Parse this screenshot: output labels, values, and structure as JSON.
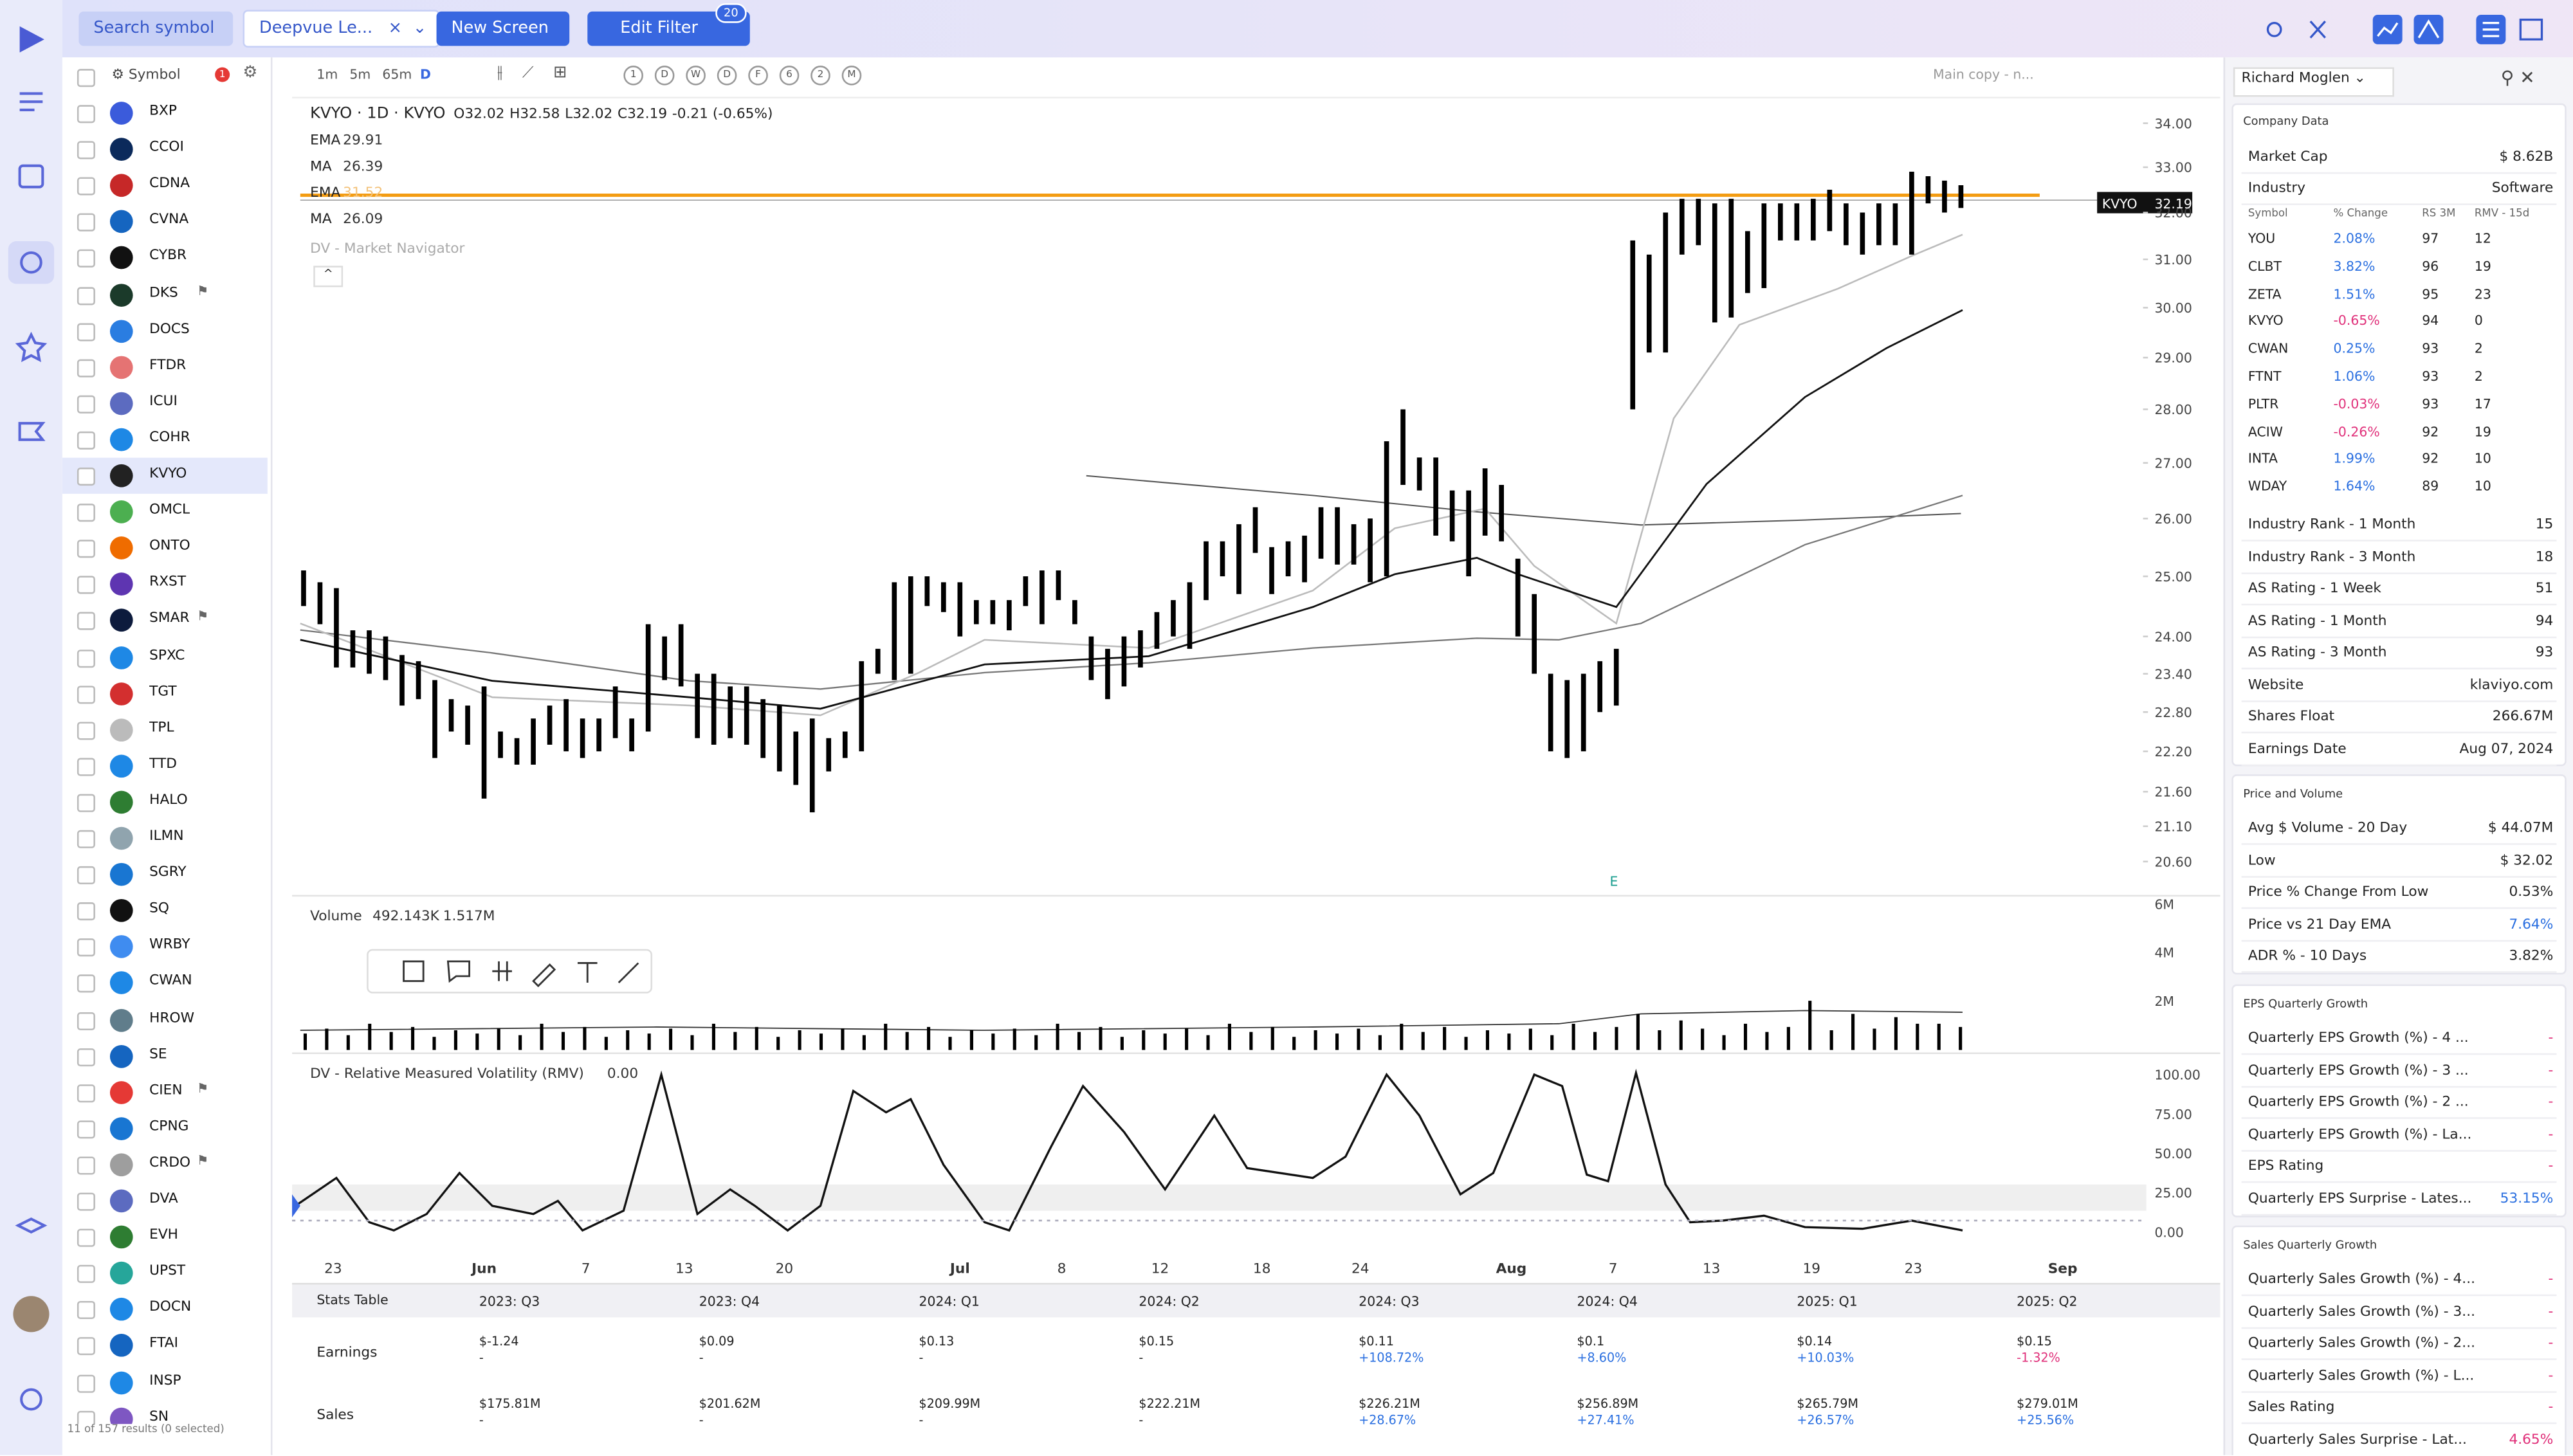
{
  "topbar": {
    "search": "Search symbol",
    "screen": "Deepvue Le...",
    "new_screen": "New Screen",
    "edit_filter": "Edit Filter",
    "filter_count": "20"
  },
  "watchlist": {
    "header": "Symbol",
    "badge": "1",
    "symbols": [
      "BXP",
      "CCOI",
      "CDNA",
      "CVNA",
      "CYBR",
      "DKS",
      "DOCS",
      "FTDR",
      "ICUI",
      "COHR",
      "KVYO",
      "OMCL",
      "ONTO",
      "RXST",
      "SMAR",
      "SPXC",
      "TGT",
      "TPL",
      "TTD",
      "HALO",
      "ILMN",
      "SGRY",
      "SQ",
      "WRBY",
      "CWAN",
      "HROW",
      "SE",
      "CIEN",
      "CPNG",
      "CRDO",
      "DVA",
      "EVH",
      "UPST",
      "DOCN",
      "FTAI",
      "INSP",
      "SN"
    ],
    "footer": "11 of 157 results (0 selected)"
  },
  "toolbar": {
    "intervals": [
      "1m",
      "5m",
      "65m",
      "D"
    ],
    "letters": [
      "1",
      "D",
      "W",
      "D",
      "F",
      "6",
      "2",
      "M"
    ],
    "layout": "Main copy - n..."
  },
  "chart": {
    "header": "KVYO · 1D · KVYO",
    "open": "O32.02",
    "high": "H32.58",
    "low": "L32.02",
    "close": "C32.19",
    "change": "-0.21 (-0.65%)",
    "indicators": [
      {
        "name": "EMA",
        "value": "29.91"
      },
      {
        "name": "MA",
        "value": "26.39"
      },
      {
        "name": "EMA",
        "value": "31.52"
      },
      {
        "name": "MA",
        "value": "26.09"
      }
    ],
    "navigator": "DV - Market Navigator",
    "last_symbol": "KVYO",
    "last_price": "32.19",
    "earnings_marker": "E",
    "ylim": [
      20.15,
      34.5
    ],
    "log_scale": true,
    "yticks": [
      {
        "value": 34,
        "label": "34.00"
      },
      {
        "value": 33,
        "label": "33.00"
      },
      {
        "value": 32,
        "label": "32.00"
      },
      {
        "value": 31,
        "label": "31.00"
      },
      {
        "value": 30,
        "label": "30.00"
      },
      {
        "value": 29,
        "label": "29.00"
      },
      {
        "value": 28,
        "label": "28.00"
      },
      {
        "value": 27,
        "label": "27.00"
      },
      {
        "value": 26,
        "label": "26.00"
      },
      {
        "value": 25,
        "label": "25.00"
      },
      {
        "value": 24,
        "label": "24.00"
      },
      {
        "value": 23.4,
        "label": "23.40"
      },
      {
        "value": 22.8,
        "label": "22.80"
      },
      {
        "value": 22.2,
        "label": "22.20"
      },
      {
        "value": 21.6,
        "label": "21.60"
      },
      {
        "value": 21.1,
        "label": "21.10"
      },
      {
        "value": 20.6,
        "label": "20.60"
      }
    ],
    "highs": [
      25.1,
      24.9,
      24.8,
      24.1,
      24.1,
      24.0,
      23.7,
      23.6,
      23.3,
      23.0,
      22.9,
      23.2,
      22.5,
      22.4,
      22.7,
      22.9,
      23.0,
      22.7,
      22.7,
      23.2,
      22.7,
      24.2,
      24.0,
      24.2,
      23.4,
      23.4,
      23.2,
      23.2,
      23.0,
      22.9,
      22.5,
      22.7,
      22.4,
      22.5,
      23.6,
      23.8,
      24.9,
      25.0,
      25.0,
      24.9,
      24.9,
      24.6,
      24.6,
      24.6,
      25.0,
      25.1,
      25.1,
      24.6,
      24.0,
      23.8,
      24.0,
      24.1,
      24.4,
      24.6,
      24.9,
      25.6,
      25.6,
      25.9,
      26.2,
      25.5,
      25.6,
      25.7,
      26.2,
      26.2,
      25.9,
      26.0,
      27.4,
      28.0,
      27.1,
      27.1,
      26.5,
      26.5,
      26.9,
      26.6,
      25.3,
      24.7,
      23.4,
      23.3,
      23.4,
      23.6,
      23.8,
      31.4,
      31.1,
      32.0,
      32.3,
      32.3,
      32.2,
      32.3,
      31.6,
      32.2,
      32.2,
      32.2,
      32.3,
      32.5,
      32.2,
      32.0,
      32.2,
      32.2,
      32.9,
      32.8,
      32.7,
      32.6
    ],
    "lows": [
      24.5,
      24.2,
      23.5,
      23.5,
      23.4,
      23.3,
      22.9,
      23.0,
      22.1,
      22.5,
      22.3,
      21.5,
      22.1,
      22.0,
      22.0,
      22.3,
      22.2,
      22.1,
      22.2,
      22.4,
      22.2,
      22.5,
      23.3,
      23.2,
      22.4,
      22.3,
      22.4,
      22.3,
      22.1,
      21.9,
      21.7,
      21.3,
      21.9,
      22.1,
      22.2,
      23.4,
      23.3,
      23.4,
      24.5,
      24.4,
      24.0,
      24.2,
      24.2,
      24.1,
      24.5,
      24.2,
      24.6,
      24.2,
      23.3,
      23.0,
      23.2,
      23.5,
      23.8,
      24.0,
      23.8,
      24.6,
      25.0,
      24.7,
      25.4,
      24.7,
      25.0,
      24.9,
      25.3,
      25.2,
      25.2,
      24.9,
      25.0,
      26.6,
      26.5,
      25.7,
      25.6,
      25.0,
      25.7,
      25.6,
      24.0,
      23.4,
      22.2,
      22.1,
      22.2,
      22.8,
      22.9,
      28.0,
      29.1,
      29.1,
      31.1,
      31.3,
      29.7,
      29.8,
      30.3,
      30.4,
      31.4,
      31.4,
      31.4,
      31.6,
      31.3,
      31.1,
      31.3,
      31.3,
      31.1,
      32.2,
      32.0,
      32.1
    ],
    "volume": {
      "title": "Volume",
      "value_1": "492.143K",
      "value_2": "1.517M",
      "ticks": [
        "6M",
        "4M",
        "2M"
      ]
    },
    "rmv": {
      "title": "DV - Relative Measured Volatility (RMV)",
      "value": "0.00",
      "ticks": [
        "100.00",
        "75.00",
        "50.00",
        "25.00",
        "0.00"
      ]
    },
    "x_labels": [
      "23",
      "Jun",
      "7",
      "13",
      "20",
      "Jul",
      "8",
      "12",
      "18",
      "24",
      "Aug",
      "7",
      "13",
      "19",
      "23",
      "Sep"
    ]
  },
  "stats": {
    "title": "Stats Table",
    "columns": [
      "2023: Q3",
      "2023: Q4",
      "2024: Q1",
      "2024: Q2",
      "2024: Q3",
      "2024: Q4",
      "2025: Q1",
      "2025: Q2"
    ],
    "rows": [
      {
        "label": "Earnings",
        "cells": [
          [
            "$-1.24",
            "-"
          ],
          [
            "$0.09",
            "-"
          ],
          [
            "$0.13",
            "-"
          ],
          [
            "$0.15",
            "-"
          ],
          [
            "$0.11",
            "+108.72%"
          ],
          [
            "$0.1",
            "+8.60%"
          ],
          [
            "$0.14",
            "+10.03%"
          ],
          [
            "$0.15",
            "-1.32%"
          ]
        ]
      },
      {
        "label": "Sales",
        "cells": [
          [
            "$175.81M",
            "-"
          ],
          [
            "$201.62M",
            "-"
          ],
          [
            "$209.99M",
            "-"
          ],
          [
            "$222.21M",
            "-"
          ],
          [
            "$226.21M",
            "+28.67%"
          ],
          [
            "$256.89M",
            "+27.41%"
          ],
          [
            "$265.79M",
            "+26.57%"
          ],
          [
            "$279.01M",
            "+25.56%"
          ]
        ]
      }
    ]
  },
  "panel": {
    "user": "Richard Moglen",
    "company": {
      "title": "Company Data",
      "market_cap": {
        "label": "Market Cap",
        "value": "$ 8.62B"
      },
      "industry": {
        "label": "Industry",
        "value": "Software"
      },
      "peer_header": [
        "Symbol",
        "% Change",
        "RS 3M",
        "RMV - 15d"
      ],
      "peers": [
        [
          "YOU",
          "2.08%",
          "97",
          "12"
        ],
        [
          "CLBT",
          "3.82%",
          "96",
          "19"
        ],
        [
          "ZETA",
          "1.51%",
          "95",
          "23"
        ],
        [
          "KVYO",
          "-0.65%",
          "94",
          "0"
        ],
        [
          "CWAN",
          "0.25%",
          "93",
          "2"
        ],
        [
          "FTNT",
          "1.06%",
          "93",
          "2"
        ],
        [
          "PLTR",
          "-0.03%",
          "93",
          "17"
        ],
        [
          "ACIW",
          "-0.26%",
          "92",
          "19"
        ],
        [
          "INTA",
          "1.99%",
          "92",
          "10"
        ],
        [
          "WDAY",
          "1.64%",
          "89",
          "10"
        ]
      ],
      "rows": [
        {
          "label": "Industry Rank - 1 Month",
          "value": "15"
        },
        {
          "label": "Industry Rank - 3 Month",
          "value": "18"
        },
        {
          "label": "AS Rating - 1 Week",
          "value": "51"
        },
        {
          "label": "AS Rating - 1 Month",
          "value": "94"
        },
        {
          "label": "AS Rating - 3 Month",
          "value": "93"
        },
        {
          "label": "Website",
          "value": "klaviyo.com"
        },
        {
          "label": "Shares Float",
          "value": "266.67M"
        },
        {
          "label": "Earnings Date",
          "value": "Aug 07, 2024"
        }
      ]
    },
    "price_volume": {
      "title": "Price and Volume",
      "rows": [
        {
          "label": "Avg $ Volume - 20 Day",
          "value": "$ 44.07M"
        },
        {
          "label": "Low",
          "value": "$ 32.02"
        },
        {
          "label": "Price % Change From Low",
          "value": "0.53%"
        },
        {
          "label": "Price vs 21 Day EMA",
          "value": "7.64%"
        },
        {
          "label": "ADR % - 10 Days",
          "value": "3.82%"
        }
      ]
    },
    "eps": {
      "title": "EPS Quarterly Growth",
      "rows": [
        {
          "label": "Quarterly EPS Growth (%) - 4 ...",
          "value": "-"
        },
        {
          "label": "Quarterly EPS Growth (%) - 3 ...",
          "value": "-"
        },
        {
          "label": "Quarterly EPS Growth (%) - 2 ...",
          "value": "-"
        },
        {
          "label": "Quarterly EPS Growth (%) - La...",
          "value": "-"
        },
        {
          "label": "EPS Rating",
          "value": "-"
        },
        {
          "label": "Quarterly EPS Surprise - Lates...",
          "value": "53.15%"
        }
      ]
    },
    "sales": {
      "title": "Sales Quarterly Growth",
      "rows": [
        {
          "label": "Quarterly Sales Growth (%) - 4...",
          "value": "-"
        },
        {
          "label": "Quarterly Sales Growth (%) - 3...",
          "value": "-"
        },
        {
          "label": "Quarterly Sales Growth (%) - 2...",
          "value": "-"
        },
        {
          "label": "Quarterly Sales Growth (%) - L...",
          "value": "-"
        },
        {
          "label": "Sales Rating",
          "value": "-"
        },
        {
          "label": "Quarterly Sales Surprise - Lat...",
          "value": "4.65%"
        }
      ]
    }
  }
}
